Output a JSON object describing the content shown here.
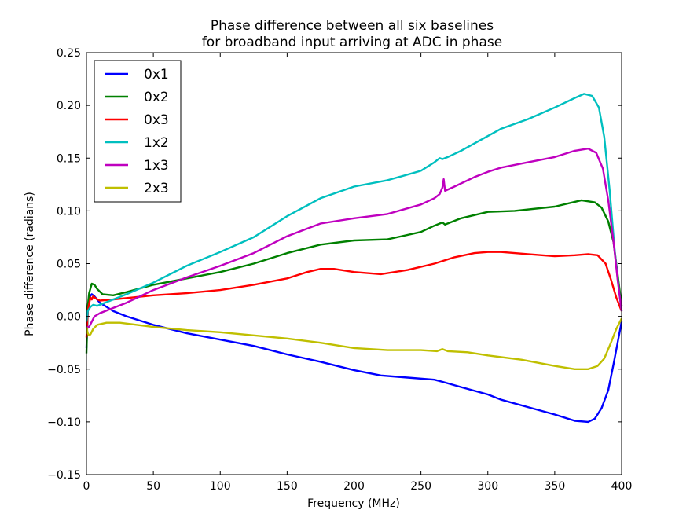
{
  "chart_data": {
    "type": "line",
    "title": "Phase difference between all six baselines",
    "subtitle": "for broadband input arriving at ADC in phase",
    "xlabel": "Frequency (MHz)",
    "ylabel": "Phase difference (radians)",
    "xlim": [
      0,
      400
    ],
    "ylim": [
      -0.15,
      0.25
    ],
    "xticks": [
      0,
      50,
      100,
      150,
      200,
      250,
      300,
      350,
      400
    ],
    "yticks": [
      -0.15,
      -0.1,
      -0.05,
      0.0,
      0.05,
      0.1,
      0.15,
      0.2,
      0.25
    ],
    "xtick_labels": [
      "0",
      "50",
      "100",
      "150",
      "200",
      "250",
      "300",
      "350",
      "400"
    ],
    "ytick_labels": [
      "−0.15",
      "−0.10",
      "−0.05",
      "0.00",
      "0.05",
      "0.10",
      "0.15",
      "0.20",
      "0.25"
    ],
    "grid": false,
    "legend_position": "top-left",
    "series": [
      {
        "name": "0x1",
        "color": "#0000ff",
        "points": [
          [
            0,
            -0.03
          ],
          [
            1,
            0.005
          ],
          [
            2,
            0.018
          ],
          [
            4,
            0.021
          ],
          [
            6,
            0.019
          ],
          [
            10,
            0.013
          ],
          [
            20,
            0.005
          ],
          [
            30,
            0.0
          ],
          [
            50,
            -0.008
          ],
          [
            75,
            -0.016
          ],
          [
            100,
            -0.022
          ],
          [
            125,
            -0.028
          ],
          [
            150,
            -0.036
          ],
          [
            175,
            -0.043
          ],
          [
            200,
            -0.051
          ],
          [
            220,
            -0.056
          ],
          [
            240,
            -0.058
          ],
          [
            260,
            -0.06
          ],
          [
            266,
            -0.062
          ],
          [
            280,
            -0.067
          ],
          [
            300,
            -0.074
          ],
          [
            310,
            -0.079
          ],
          [
            330,
            -0.086
          ],
          [
            350,
            -0.093
          ],
          [
            365,
            -0.099
          ],
          [
            375,
            -0.1
          ],
          [
            380,
            -0.097
          ],
          [
            385,
            -0.087
          ],
          [
            390,
            -0.07
          ],
          [
            394,
            -0.045
          ],
          [
            397,
            -0.025
          ],
          [
            400,
            -0.005
          ]
        ]
      },
      {
        "name": "0x2",
        "color": "#008000",
        "points": [
          [
            0,
            -0.035
          ],
          [
            1,
            0.01
          ],
          [
            2,
            0.022
          ],
          [
            4,
            0.031
          ],
          [
            6,
            0.03
          ],
          [
            8,
            0.026
          ],
          [
            12,
            0.021
          ],
          [
            20,
            0.02
          ],
          [
            30,
            0.023
          ],
          [
            50,
            0.03
          ],
          [
            75,
            0.036
          ],
          [
            100,
            0.042
          ],
          [
            125,
            0.05
          ],
          [
            150,
            0.06
          ],
          [
            175,
            0.068
          ],
          [
            200,
            0.072
          ],
          [
            225,
            0.073
          ],
          [
            250,
            0.08
          ],
          [
            260,
            0.086
          ],
          [
            266,
            0.089
          ],
          [
            268,
            0.087
          ],
          [
            280,
            0.093
          ],
          [
            300,
            0.099
          ],
          [
            320,
            0.1
          ],
          [
            350,
            0.104
          ],
          [
            370,
            0.11
          ],
          [
            380,
            0.108
          ],
          [
            385,
            0.103
          ],
          [
            390,
            0.09
          ],
          [
            394,
            0.07
          ],
          [
            397,
            0.04
          ],
          [
            400,
            0.01
          ]
        ]
      },
      {
        "name": "0x3",
        "color": "#ff0000",
        "points": [
          [
            0,
            -0.02
          ],
          [
            1,
            0.005
          ],
          [
            2,
            0.012
          ],
          [
            3,
            0.018
          ],
          [
            4,
            0.016
          ],
          [
            5,
            0.019
          ],
          [
            7,
            0.017
          ],
          [
            10,
            0.015
          ],
          [
            20,
            0.016
          ],
          [
            50,
            0.02
          ],
          [
            75,
            0.022
          ],
          [
            100,
            0.025
          ],
          [
            125,
            0.03
          ],
          [
            150,
            0.036
          ],
          [
            165,
            0.042
          ],
          [
            175,
            0.045
          ],
          [
            185,
            0.045
          ],
          [
            200,
            0.042
          ],
          [
            220,
            0.04
          ],
          [
            240,
            0.044
          ],
          [
            260,
            0.05
          ],
          [
            275,
            0.056
          ],
          [
            290,
            0.06
          ],
          [
            300,
            0.061
          ],
          [
            310,
            0.061
          ],
          [
            330,
            0.059
          ],
          [
            350,
            0.057
          ],
          [
            365,
            0.058
          ],
          [
            375,
            0.059
          ],
          [
            382,
            0.058
          ],
          [
            388,
            0.05
          ],
          [
            392,
            0.035
          ],
          [
            396,
            0.018
          ],
          [
            400,
            0.005
          ]
        ]
      },
      {
        "name": "1x2",
        "color": "#00bfbf",
        "points": [
          [
            0,
            -0.005
          ],
          [
            1,
            0.005
          ],
          [
            3,
            0.009
          ],
          [
            5,
            0.011
          ],
          [
            8,
            0.01
          ],
          [
            12,
            0.012
          ],
          [
            20,
            0.016
          ],
          [
            30,
            0.021
          ],
          [
            50,
            0.032
          ],
          [
            75,
            0.048
          ],
          [
            100,
            0.061
          ],
          [
            125,
            0.075
          ],
          [
            150,
            0.095
          ],
          [
            175,
            0.112
          ],
          [
            200,
            0.123
          ],
          [
            225,
            0.129
          ],
          [
            250,
            0.138
          ],
          [
            260,
            0.146
          ],
          [
            264,
            0.15
          ],
          [
            266,
            0.149
          ],
          [
            270,
            0.151
          ],
          [
            280,
            0.157
          ],
          [
            300,
            0.171
          ],
          [
            310,
            0.178
          ],
          [
            330,
            0.187
          ],
          [
            350,
            0.198
          ],
          [
            365,
            0.207
          ],
          [
            372,
            0.211
          ],
          [
            378,
            0.209
          ],
          [
            383,
            0.198
          ],
          [
            387,
            0.17
          ],
          [
            391,
            0.12
          ],
          [
            395,
            0.06
          ],
          [
            398,
            0.025
          ],
          [
            400,
            0.005
          ]
        ]
      },
      {
        "name": "1x3",
        "color": "#bf00bf",
        "points": [
          [
            0,
            -0.01
          ],
          [
            2,
            -0.01
          ],
          [
            4,
            -0.005
          ],
          [
            6,
            0.0
          ],
          [
            10,
            0.003
          ],
          [
            20,
            0.008
          ],
          [
            30,
            0.013
          ],
          [
            50,
            0.025
          ],
          [
            75,
            0.037
          ],
          [
            100,
            0.048
          ],
          [
            125,
            0.06
          ],
          [
            150,
            0.076
          ],
          [
            175,
            0.088
          ],
          [
            200,
            0.093
          ],
          [
            225,
            0.097
          ],
          [
            250,
            0.106
          ],
          [
            260,
            0.112
          ],
          [
            264,
            0.116
          ],
          [
            266,
            0.122
          ],
          [
            267,
            0.13
          ],
          [
            268,
            0.119
          ],
          [
            275,
            0.123
          ],
          [
            290,
            0.132
          ],
          [
            300,
            0.137
          ],
          [
            310,
            0.141
          ],
          [
            330,
            0.146
          ],
          [
            350,
            0.151
          ],
          [
            365,
            0.157
          ],
          [
            375,
            0.159
          ],
          [
            381,
            0.155
          ],
          [
            386,
            0.14
          ],
          [
            390,
            0.11
          ],
          [
            394,
            0.07
          ],
          [
            397,
            0.035
          ],
          [
            400,
            0.005
          ]
        ]
      },
      {
        "name": "2x3",
        "color": "#bfbf00",
        "points": [
          [
            0,
            -0.01
          ],
          [
            1,
            -0.016
          ],
          [
            2,
            -0.018
          ],
          [
            3,
            -0.017
          ],
          [
            5,
            -0.012
          ],
          [
            8,
            -0.008
          ],
          [
            15,
            -0.006
          ],
          [
            25,
            -0.006
          ],
          [
            50,
            -0.01
          ],
          [
            75,
            -0.013
          ],
          [
            100,
            -0.015
          ],
          [
            125,
            -0.018
          ],
          [
            150,
            -0.021
          ],
          [
            175,
            -0.025
          ],
          [
            200,
            -0.03
          ],
          [
            225,
            -0.032
          ],
          [
            250,
            -0.032
          ],
          [
            262,
            -0.033
          ],
          [
            266,
            -0.031
          ],
          [
            270,
            -0.033
          ],
          [
            285,
            -0.034
          ],
          [
            300,
            -0.037
          ],
          [
            325,
            -0.041
          ],
          [
            350,
            -0.047
          ],
          [
            365,
            -0.05
          ],
          [
            375,
            -0.05
          ],
          [
            382,
            -0.047
          ],
          [
            387,
            -0.04
          ],
          [
            392,
            -0.025
          ],
          [
            396,
            -0.012
          ],
          [
            400,
            -0.002
          ]
        ]
      }
    ]
  }
}
